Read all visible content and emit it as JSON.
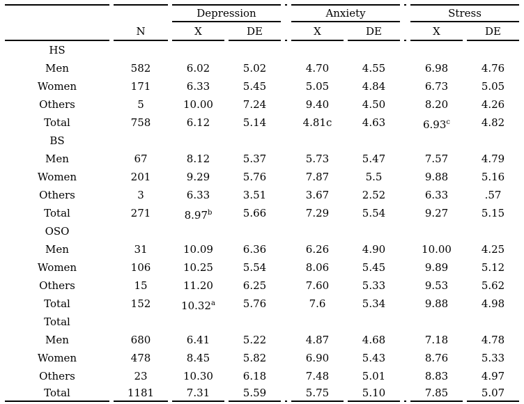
{
  "table": {
    "group_headers": [
      "Depression",
      "Anxiety",
      "Stress"
    ],
    "sub_headers": {
      "n": "N",
      "x": "X",
      "de": "DE"
    },
    "sections": [
      {
        "name": "HS",
        "rows": [
          {
            "label": "Men",
            "values": [
              "582",
              "6.02",
              "5.02",
              "4.70",
              "4.55",
              "6.98",
              "4.76"
            ]
          },
          {
            "label": "Women",
            "values": [
              "171",
              "6.33",
              "5.45",
              "5.05",
              "4.84",
              "6.73",
              "5.05"
            ]
          },
          {
            "label": "Others",
            "values": [
              "5",
              "10.00",
              "7.24",
              "9.40",
              "4.50",
              "8.20",
              "4.26"
            ]
          },
          {
            "label": "Total",
            "values": [
              "758",
              "6.12",
              "5.14",
              "4.81c",
              "4.63",
              {
                "v": "6.93",
                "sup": "c"
              },
              "4.82"
            ]
          }
        ]
      },
      {
        "name": "BS",
        "rows": [
          {
            "label": "Men",
            "values": [
              "67",
              "8.12",
              "5.37",
              "5.73",
              "5.47",
              "7.57",
              "4.79"
            ]
          },
          {
            "label": "Women",
            "values": [
              "201",
              "9.29",
              "5.76",
              "7.87",
              "5.5",
              "9.88",
              "5.16"
            ]
          },
          {
            "label": "Others",
            "values": [
              "3",
              "6.33",
              "3.51",
              "3.67",
              "2.52",
              "6.33",
              ".57"
            ]
          },
          {
            "label": "Total",
            "values": [
              "271",
              {
                "v": "8.97",
                "sup": "b"
              },
              "5.66",
              "7.29",
              "5.54",
              "9.27",
              "5.15"
            ]
          }
        ]
      },
      {
        "name": "OSO",
        "rows": [
          {
            "label": "Men",
            "values": [
              "31",
              "10.09",
              "6.36",
              "6.26",
              "4.90",
              "10.00",
              "4.25"
            ]
          },
          {
            "label": "Women",
            "values": [
              "106",
              "10.25",
              "5.54",
              "8.06",
              "5.45",
              "9.89",
              "5.12"
            ]
          },
          {
            "label": "Others",
            "values": [
              "15",
              "11.20",
              "6.25",
              "7.60",
              "5.33",
              "9.53",
              "5.62"
            ]
          },
          {
            "label": "Total",
            "values": [
              "152",
              {
                "v": "10.32",
                "sup": "a"
              },
              "5.76",
              "7.6",
              "5.34",
              "9.88",
              "4.98"
            ]
          }
        ]
      },
      {
        "name": "Total",
        "rows": [
          {
            "label": "Men",
            "values": [
              "680",
              "6.41",
              "5.22",
              "4.87",
              "4.68",
              "7.18",
              "4.78"
            ]
          },
          {
            "label": "Women",
            "values": [
              "478",
              "8.45",
              "5.82",
              "6.90",
              "5.43",
              "8.76",
              "5.33"
            ]
          },
          {
            "label": "Others",
            "values": [
              "23",
              "10.30",
              "6.18",
              "7.48",
              "5.01",
              "8.83",
              "4.97"
            ]
          },
          {
            "label": "Total",
            "flush": true,
            "values": [
              "1181",
              "7.31",
              "5.59",
              "5.75",
              "5.10",
              "7.85",
              "5.07"
            ]
          }
        ]
      }
    ]
  }
}
